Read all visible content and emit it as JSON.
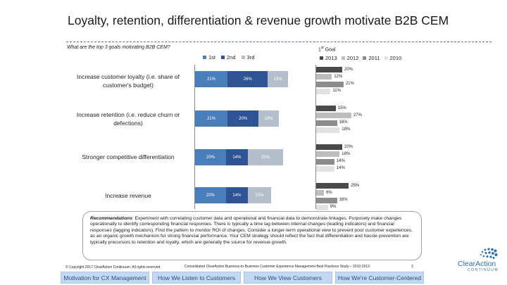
{
  "slide": {
    "title": "Loyalty, retention, differentiation & revenue growth motivate B2B CEM",
    "question": "What are the top 3 goals motivating B2B CEM?",
    "first_goal_base": "1",
    "first_goal_sup": "st",
    "first_goal_rest": " Goal",
    "page_number": "3",
    "copyright": "© Copyright 2017 ClearAction Continuum. All rights reserved.",
    "study": "Consolidated ClearAction Business-to-Business Customer Experience Management Best Practices Study – 2010-2013",
    "recommendations_label": "Recommendations",
    "recommendations_text": ": Experiment with correlating customer data and operational and financial data to demonstrate linkages. Purposely make changes operationally to identify corresponding financial responses. There is typically a time lag between internal changes (leading indicators) and financial responses (lagging indicators).  Find the pattern to monitor ROI of changes. Consider a longer-term operational view to prevent poor customer experiences, as an organic growth mechanism for strong financial performance.  Your CEM strategy should reflect the fact that differentiation and hassle prevention are typically precursors to retention and loyalty, which are generally the source for revenue growth."
  },
  "logo": {
    "word": "ClearAction",
    "sub": "CONTINUUM"
  },
  "tabs": [
    "Motivation for CX Management",
    "How We Listen to Customers",
    "How We View Customers",
    "How We're Customer-Centered"
  ],
  "colors": {
    "first": "#4a7ebb",
    "second": "#2e5495",
    "third": "#b4bdca",
    "y2013": "#4a4a4a",
    "y2012": "#bdbdbd",
    "y2011": "#8c8c8c",
    "y2010": "#e2e2e2"
  },
  "chart_data": [
    {
      "type": "bar",
      "stacked": true,
      "orientation": "horizontal",
      "categories": [
        "Increase customer loyalty (i.e. share of customer's budget)",
        "Increase retention (i.e. reduce churn or defections)",
        "Stronger competitive differentiation",
        "Increase revenue"
      ],
      "series": [
        {
          "name": "1st",
          "values": [
            21,
            21,
            20,
            20
          ],
          "labels": [
            "21%",
            "21%",
            "20%",
            "20%"
          ]
        },
        {
          "name": "2nd",
          "values": [
            26,
            20,
            14,
            14
          ],
          "labels": [
            "26%",
            "20%",
            "14%",
            "14%"
          ]
        },
        {
          "name": "3rd",
          "values": [
            13,
            13,
            23,
            15
          ],
          "labels": [
            "13%",
            "13%",
            "23%",
            "15%"
          ]
        }
      ],
      "legend_position": "top",
      "grid": false
    },
    {
      "type": "bar",
      "orientation": "horizontal",
      "title": "1st Goal",
      "categories": [
        "Increase customer loyalty (i.e. share of customer's budget)",
        "Increase retention (i.e. reduce churn or defections)",
        "Stronger competitive differentiation",
        "Increase revenue"
      ],
      "series": [
        {
          "name": "2013",
          "values": [
            20,
            15,
            20,
            25
          ],
          "labels": [
            "20%",
            "15%",
            "20%",
            "25%"
          ]
        },
        {
          "name": "2012",
          "values": [
            12,
            27,
            18,
            6
          ],
          "labels": [
            "12%",
            "27%",
            "18%",
            "6%"
          ]
        },
        {
          "name": "2011",
          "values": [
            21,
            16,
            14,
            16
          ],
          "labels": [
            "21%",
            "16%",
            "14%",
            "16%"
          ]
        },
        {
          "name": "2010",
          "values": [
            11,
            18,
            14,
            9
          ],
          "labels": [
            "11%",
            "18%",
            "14%",
            "9%"
          ]
        }
      ],
      "legend_position": "top",
      "grid": false
    }
  ]
}
